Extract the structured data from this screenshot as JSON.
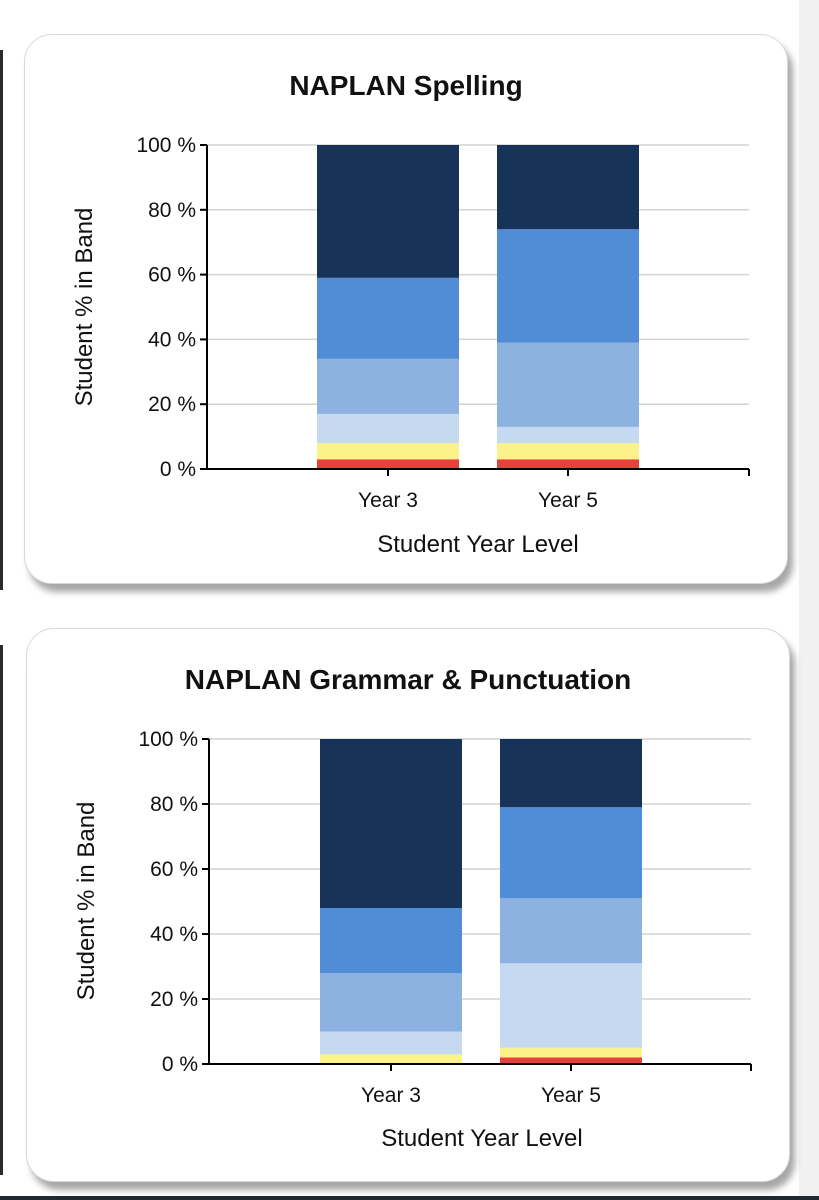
{
  "colors": {
    "red": "#e8413c",
    "yellow": "#fbf38a",
    "pale_blue": "#c5d9f0",
    "light_blue": "#8db1e1",
    "mid_blue": "#518dd6",
    "navy": "#173458"
  },
  "chart_data": [
    {
      "type": "bar",
      "stacked": true,
      "title": "NAPLAN Spelling",
      "xlabel": "Student Year Level",
      "ylabel": "Student % in Band",
      "ylim": [
        0,
        100
      ],
      "y_ticks": [
        "0 %",
        "20 %",
        "40 %",
        "60 %",
        "80 %",
        "100 %"
      ],
      "categories": [
        "Year 3",
        "Year 5"
      ],
      "grid": true,
      "legend": "none",
      "series": [
        {
          "color": "red",
          "values": [
            3,
            3
          ]
        },
        {
          "color": "yellow",
          "values": [
            5,
            5
          ]
        },
        {
          "color": "pale_blue",
          "values": [
            9,
            5
          ]
        },
        {
          "color": "light_blue",
          "values": [
            17,
            26
          ]
        },
        {
          "color": "mid_blue",
          "values": [
            25,
            35
          ]
        },
        {
          "color": "navy",
          "values": [
            41,
            26
          ]
        }
      ]
    },
    {
      "type": "bar",
      "stacked": true,
      "title": "NAPLAN Grammar & Punctuation",
      "xlabel": "Student Year Level",
      "ylabel": "Student % in Band",
      "ylim": [
        0,
        100
      ],
      "y_ticks": [
        "0 %",
        "20 %",
        "40 %",
        "60 %",
        "80 %",
        "100 %"
      ],
      "categories": [
        "Year 3",
        "Year 5"
      ],
      "grid": true,
      "legend": "none",
      "series": [
        {
          "color": "red",
          "values": [
            0,
            2
          ]
        },
        {
          "color": "yellow",
          "values": [
            3,
            3
          ]
        },
        {
          "color": "pale_blue",
          "values": [
            7,
            26
          ]
        },
        {
          "color": "light_blue",
          "values": [
            18,
            20
          ]
        },
        {
          "color": "mid_blue",
          "values": [
            20,
            28
          ]
        },
        {
          "color": "navy",
          "values": [
            52,
            21
          ]
        }
      ]
    }
  ]
}
